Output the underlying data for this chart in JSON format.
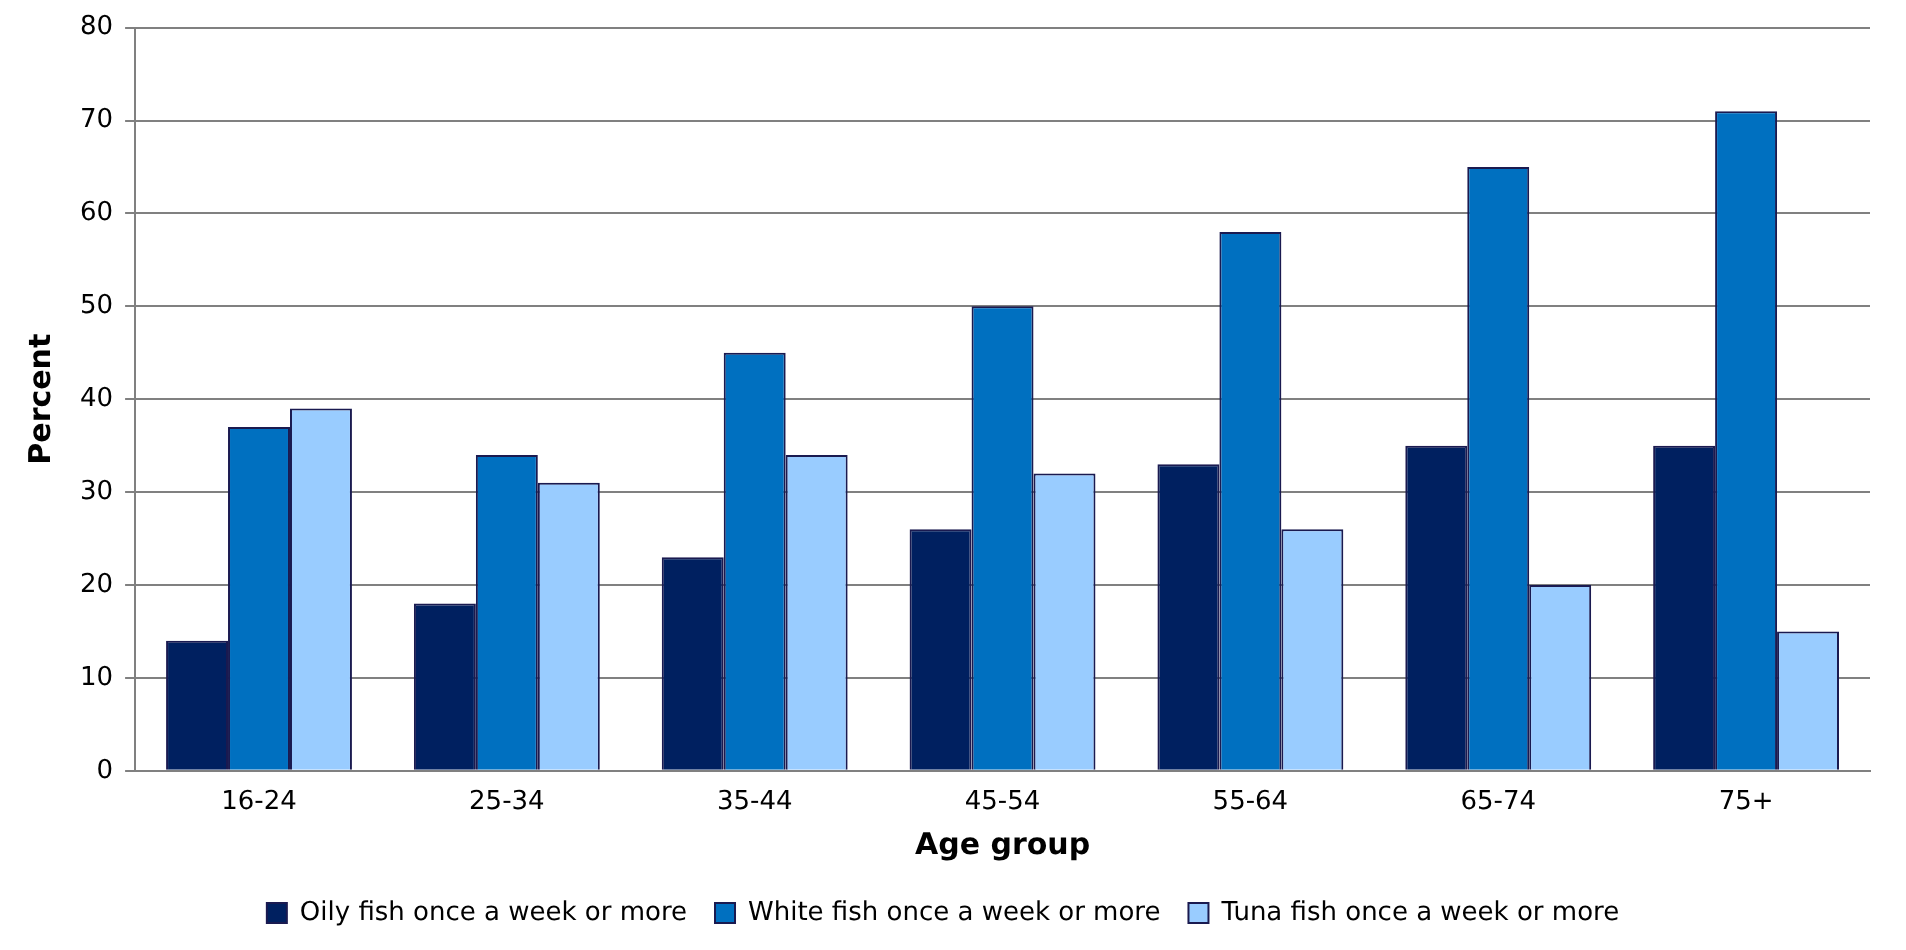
{
  "chart_data": {
    "type": "bar",
    "xlabel": "Age group",
    "ylabel": "Percent",
    "categories": [
      "16-24",
      "25-34",
      "35-44",
      "45-54",
      "55-64",
      "65-74",
      "75+"
    ],
    "series": [
      {
        "name": "Oily fish once a week or more",
        "color": "#002060",
        "values": [
          14,
          18,
          23,
          26,
          33,
          35,
          35
        ]
      },
      {
        "name": "White fish once a week or more",
        "color": "#0070c0",
        "values": [
          37,
          34,
          45,
          50,
          58,
          65,
          71
        ]
      },
      {
        "name": "Tuna fish once a week or more",
        "color": "#99ccff",
        "values": [
          39,
          31,
          34,
          32,
          26,
          20,
          15
        ]
      }
    ],
    "ylim": [
      0,
      80
    ],
    "yticks": [
      0,
      10,
      20,
      30,
      40,
      50,
      60,
      70,
      80
    ],
    "grid": "y",
    "legend": "bottom"
  }
}
